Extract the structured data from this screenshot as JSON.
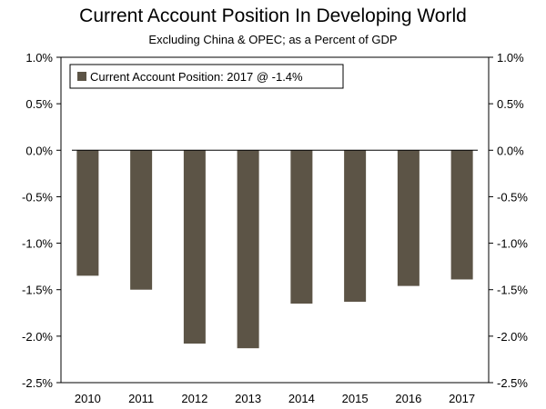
{
  "chart_data": {
    "type": "bar",
    "title": "Current Account Position In Developing World",
    "subtitle": "Excluding China & OPEC; as a Percent of GDP",
    "categories": [
      "2010",
      "2011",
      "2012",
      "2013",
      "2014",
      "2015",
      "2016",
      "2017"
    ],
    "series": [
      {
        "name": "Current Account Position: 2017 @ -1.4%",
        "values": [
          -1.35,
          -1.5,
          -2.08,
          -2.13,
          -1.65,
          -1.63,
          -1.46,
          -1.39
        ],
        "color": "#5c5446"
      }
    ],
    "ylim": [
      -2.5,
      1.0
    ],
    "yticks": [
      1.0,
      0.5,
      0.0,
      -0.5,
      -1.0,
      -1.5,
      -2.0,
      -2.5
    ],
    "ytick_labels": [
      "1.0%",
      "0.5%",
      "0.0%",
      "-0.5%",
      "-1.0%",
      "-1.5%",
      "-2.0%",
      "-2.5%"
    ],
    "legend_position": "top-left",
    "grid": false
  }
}
